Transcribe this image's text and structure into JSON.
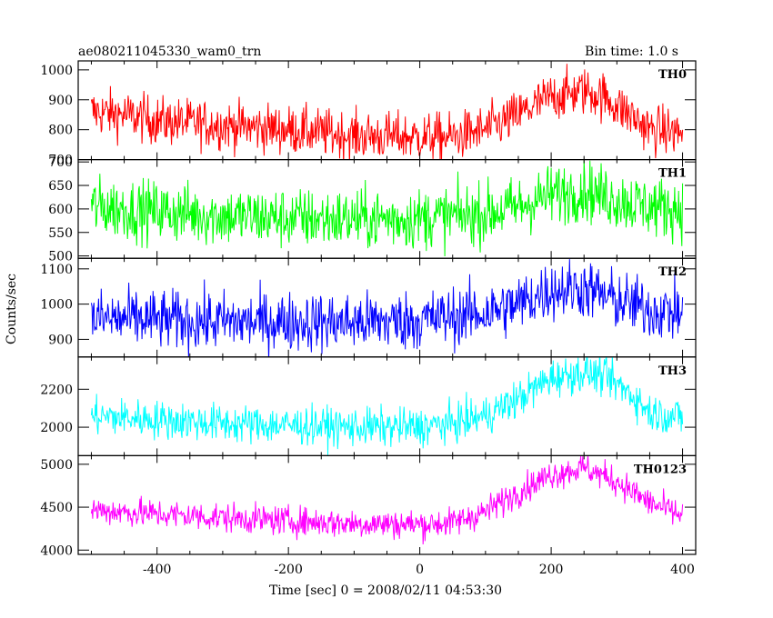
{
  "chart_data": {
    "type": "line",
    "title": "ae080211045330_wam0_trn",
    "bin_label": "Bin time: 1.0 s",
    "xlabel": "Time [sec] 0 = 2008/02/11 04:53:30",
    "ylabel": "Counts/sec",
    "xlim": [
      -520,
      420
    ],
    "x_ticks": [
      -400,
      -200,
      0,
      200,
      400
    ],
    "data_range": [
      -500,
      400
    ],
    "panels": [
      {
        "name": "TH0",
        "color": "#ff0000",
        "ylim": [
          700,
          1030
        ],
        "y_ticks": [
          700,
          800,
          900,
          1000
        ],
        "trend_x": [
          -500,
          -450,
          -400,
          -300,
          -200,
          -100,
          0,
          50,
          100,
          150,
          200,
          250,
          280,
          320,
          350,
          400
        ],
        "trend_y": [
          860,
          850,
          830,
          815,
          800,
          780,
          775,
          775,
          800,
          850,
          910,
          930,
          910,
          850,
          800,
          790
        ],
        "noise": 40
      },
      {
        "name": "TH1",
        "color": "#00ff00",
        "ylim": [
          495,
          705
        ],
        "y_ticks": [
          500,
          550,
          600,
          650,
          700
        ],
        "trend_x": [
          -500,
          -400,
          -300,
          -200,
          -100,
          0,
          100,
          150,
          200,
          250,
          300,
          350,
          400
        ],
        "trend_y": [
          605,
          595,
          585,
          580,
          578,
          580,
          590,
          605,
          630,
          640,
          620,
          605,
          600
        ],
        "noise": 32
      },
      {
        "name": "TH2",
        "color": "#0000ff",
        "ylim": [
          850,
          1130
        ],
        "y_ticks": [
          900,
          1000,
          1100
        ],
        "trend_x": [
          -500,
          -400,
          -300,
          -200,
          -100,
          0,
          100,
          150,
          200,
          250,
          300,
          350,
          400
        ],
        "trend_y": [
          960,
          955,
          950,
          950,
          948,
          955,
          975,
          1000,
          1040,
          1045,
          1010,
          985,
          975
        ],
        "noise": 42
      },
      {
        "name": "TH3",
        "color": "#00ffff",
        "ylim": [
          1850,
          2370
        ],
        "y_ticks": [
          2000,
          2200
        ],
        "trend_x": [
          -500,
          -400,
          -300,
          -200,
          -100,
          0,
          50,
          100,
          150,
          200,
          250,
          280,
          320,
          350,
          400
        ],
        "trend_y": [
          2060,
          2040,
          2020,
          2010,
          2000,
          2000,
          2020,
          2060,
          2150,
          2260,
          2290,
          2270,
          2180,
          2080,
          2050
        ],
        "noise": 50
      },
      {
        "name": "TH0123",
        "color": "#ff00ff",
        "ylim": [
          3950,
          5100
        ],
        "y_ticks": [
          4000,
          4500,
          5000
        ],
        "trend_x": [
          -500,
          -400,
          -300,
          -200,
          -100,
          0,
          50,
          100,
          150,
          200,
          250,
          300,
          350,
          400
        ],
        "trend_y": [
          4470,
          4420,
          4380,
          4340,
          4310,
          4300,
          4320,
          4450,
          4680,
          4880,
          4960,
          4800,
          4550,
          4400
        ],
        "noise": 85
      }
    ]
  }
}
